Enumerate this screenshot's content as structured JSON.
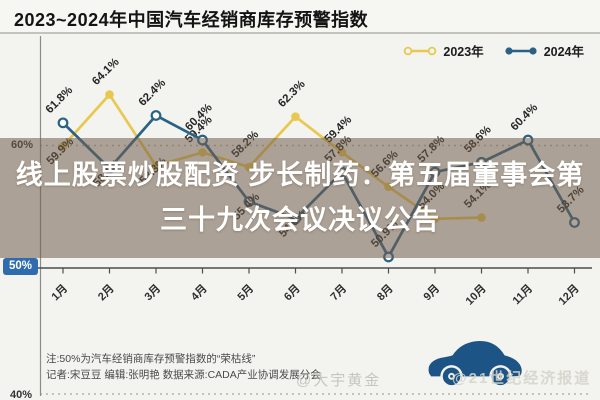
{
  "header": {
    "title": "2023~2024年中国汽车经销商库存预警指数"
  },
  "legend": [
    {
      "label": "2023年",
      "color": "#e8c84e",
      "marker": "open"
    },
    {
      "label": "2024年",
      "color": "#2a6285",
      "marker": "solid"
    }
  ],
  "overlay": {
    "headline": "线上股票炒股配资 步长制药：第五届董事会第三十九次会议决议公告"
  },
  "y_axis": {
    "top": "60%",
    "mid": "50%",
    "bottom": "40%",
    "mid_badge_color": "#2f6cad"
  },
  "notes": {
    "line1": "注:50%为汽车经销商库存预警指数的“荣枯线”",
    "line2": "记者:宋豆豆   编辑:张明艳   数据来源:CADA产业协调发展分会"
  },
  "watermarks": {
    "center": "@大宇黄金",
    "right": "@21世纪经济报道"
  },
  "icons": {
    "car_color": "#1c5486"
  },
  "chart_data": {
    "type": "line",
    "title": "2023~2024年中国汽车经销商库存预警指数",
    "categories": [
      "1月",
      "2月",
      "3月",
      "4月",
      "5月",
      "6月",
      "7月",
      "8月",
      "9月",
      "10月",
      "11月",
      "12月"
    ],
    "ylim": [
      40,
      70
    ],
    "yticks": [
      "40%",
      "50%",
      "60%"
    ],
    "grid": "dotted horizontal at 60% and 40%, solid baseline at 50% (荣枯线)",
    "legend_position": "top-right",
    "series": [
      {
        "name": "2023年",
        "color": "#e8c84e",
        "marker": "solid-dot",
        "values": [
          59.9,
          64.1,
          58.3,
          59.4,
          58.2,
          62.3,
          59.4,
          56.6,
          54.0,
          54.1,
          null,
          null
        ],
        "labels": [
          "59.9%",
          "64.1%",
          "58.3%",
          "59.4%",
          "58.2%",
          "62.3%",
          "59.4%",
          "56.6%",
          "54.0%",
          "54.1%",
          "",
          ""
        ],
        "label_pos": [
          "b",
          "a",
          "b",
          "a",
          "a",
          "a",
          "a",
          "a",
          "a",
          "a",
          "",
          ""
        ]
      },
      {
        "name": "2024年",
        "color": "#2a6285",
        "marker": "open-dot",
        "values": [
          61.8,
          58.1,
          62.4,
          60.4,
          55.4,
          54.0,
          57.8,
          50.9,
          57.8,
          58.6,
          60.4,
          53.7
        ],
        "labels": [
          "61.8%",
          "58.1%",
          "62.4%",
          "60.4%",
          "55.4%",
          "54.0%",
          "57.8%",
          "50.9%",
          "57.8%",
          "58.6%",
          "60.4%",
          "53.7%"
        ],
        "label_pos": [
          "a",
          "b",
          "a",
          "a",
          "b",
          "b",
          "a",
          "a",
          "a",
          "a",
          "a",
          "a"
        ]
      }
    ]
  }
}
